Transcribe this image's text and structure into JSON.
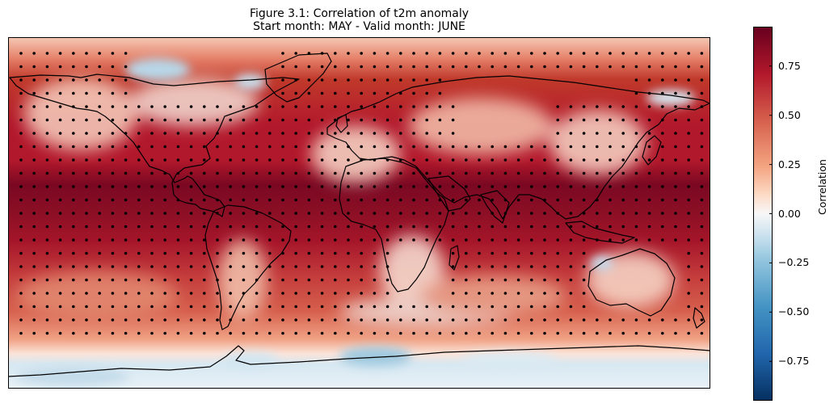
{
  "title": {
    "line1": "Figure 3.1: Correlation of t2m anomaly",
    "line2": "Start month: MAY - Valid month: JUNE"
  },
  "map": {
    "projection": "PlateCarree",
    "variable": "t2m anomaly correlation",
    "stippling": "significant correlation (dots)",
    "coastlines": true
  },
  "colorbar": {
    "label": "Correlation",
    "colormap": "RdBu_r",
    "range": [
      -0.95,
      0.95
    ],
    "ticks": [
      "0.75",
      "0.50",
      "0.25",
      "0.00",
      "−0.25",
      "−0.50",
      "−0.75"
    ],
    "tick_values": [
      0.75,
      0.5,
      0.25,
      0.0,
      -0.25,
      -0.5,
      -0.75
    ]
  },
  "colors": {
    "deep_red": "#67001f",
    "red": "#b2182b",
    "light_red": "#f4a582",
    "white": "#f7f7f7",
    "light_blue": "#92c5de",
    "blue": "#2166ac",
    "deep_blue": "#053061"
  }
}
